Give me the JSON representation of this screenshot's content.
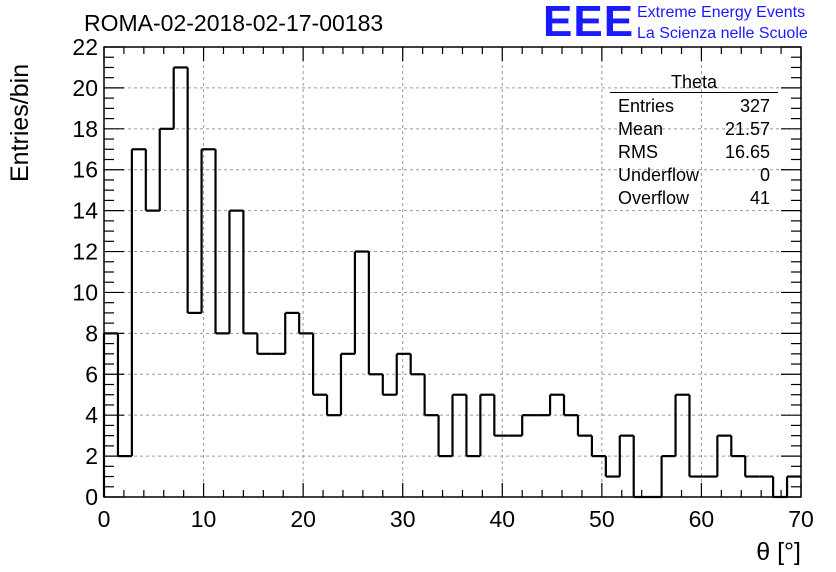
{
  "title": "ROMA-02-2018-02-17-00183",
  "logo": {
    "mark": "EEE",
    "line1": "Extreme Energy Events",
    "line2": "La Scienza nelle Scuole",
    "color": "#1a1aff"
  },
  "stats": {
    "name": "Theta",
    "rows": [
      {
        "label": "Entries",
        "value": "327"
      },
      {
        "label": "Mean",
        "value": "21.57"
      },
      {
        "label": "RMS",
        "value": "16.65"
      },
      {
        "label": "Underflow",
        "value": "0"
      },
      {
        "label": "Overflow",
        "value": "41"
      }
    ]
  },
  "chart_data": {
    "type": "bar",
    "histogram": true,
    "xlabel": "θ [°]",
    "ylabel": "Entries/bin",
    "xlim": [
      0,
      70
    ],
    "ylim": [
      0,
      22
    ],
    "xticks": [
      0,
      10,
      20,
      30,
      40,
      50,
      60,
      70
    ],
    "yticks": [
      0,
      2,
      4,
      6,
      8,
      10,
      12,
      14,
      16,
      18,
      20,
      22
    ],
    "grid": true,
    "bin_width": 1.4,
    "values": [
      8,
      2,
      17,
      14,
      18,
      21,
      9,
      17,
      8,
      14,
      8,
      7,
      7,
      9,
      8,
      5,
      4,
      7,
      12,
      6,
      5,
      7,
      6,
      4,
      2,
      5,
      2,
      5,
      3,
      3,
      4,
      4,
      5,
      4,
      3,
      2,
      1,
      3,
      0,
      0,
      2,
      5,
      1,
      1,
      3,
      2,
      1,
      1,
      0,
      1
    ]
  }
}
